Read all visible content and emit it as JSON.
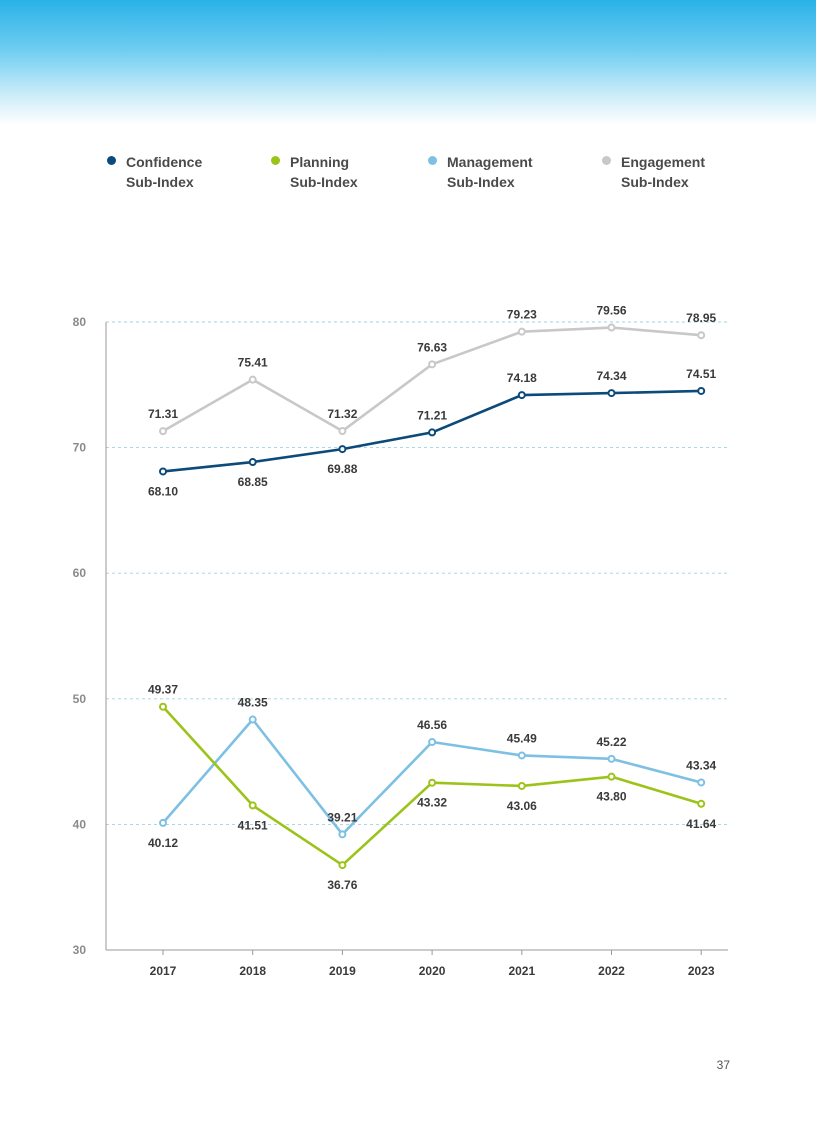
{
  "colors": {
    "confidence": "#0b4a7a",
    "planning": "#9cc31a",
    "management": "#7ec0e3",
    "engagement": "#c8c8c8",
    "grid": "#9cd3e6",
    "axis": "#999999",
    "tick_text": "#8a8a8a",
    "label_text": "#3a3a3a"
  },
  "legend": [
    {
      "key": "confidence",
      "label": "Confidence\nSub-Index"
    },
    {
      "key": "planning",
      "label": "Planning\nSub-Index"
    },
    {
      "key": "management",
      "label": "Management\nSub-Index"
    },
    {
      "key": "engagement",
      "label": "Engagement\nSub-Index"
    }
  ],
  "chart_data": {
    "type": "line",
    "x": [
      "2017",
      "2018",
      "2019",
      "2020",
      "2021",
      "2022",
      "2023"
    ],
    "ylim": [
      30,
      80
    ],
    "yticks": [
      30,
      40,
      50,
      60,
      70,
      80
    ],
    "grid": true,
    "legend_position": "top",
    "series": [
      {
        "key": "engagement",
        "name": "Engagement Sub-Index",
        "values": [
          71.31,
          75.41,
          71.32,
          76.63,
          79.23,
          79.56,
          78.95
        ],
        "labels": [
          "71.31",
          "75.41",
          "71.32",
          "76.63",
          "79.23",
          "79.56",
          "78.95"
        ],
        "label_pos": [
          "above",
          "above",
          "above",
          "above",
          "above",
          "above",
          "above"
        ]
      },
      {
        "key": "confidence",
        "name": "Confidence Sub-Index",
        "values": [
          68.1,
          68.85,
          69.88,
          71.21,
          74.18,
          74.34,
          74.51
        ],
        "labels": [
          "68.10",
          "68.85",
          "69.88",
          "71.21",
          "74.18",
          "74.34",
          "74.51"
        ],
        "label_pos": [
          "below",
          "below",
          "below",
          "above",
          "above",
          "above",
          "above"
        ]
      },
      {
        "key": "management",
        "name": "Management Sub-Index",
        "values": [
          40.12,
          48.35,
          39.21,
          46.56,
          45.49,
          45.22,
          43.34
        ],
        "labels": [
          "40.12",
          "48.35",
          "39.21",
          "46.56",
          "45.49",
          "45.22",
          "43.34"
        ],
        "label_pos": [
          "below",
          "above",
          "above",
          "above",
          "above",
          "above",
          "above"
        ]
      },
      {
        "key": "planning",
        "name": "Planning Sub-Index",
        "values": [
          49.37,
          41.51,
          36.76,
          43.32,
          43.06,
          43.8,
          41.64
        ],
        "labels": [
          "49.37",
          "41.51",
          "36.76",
          "43.32",
          "43.06",
          "43.80",
          "41.64"
        ],
        "label_pos": [
          "above",
          "below",
          "below",
          "below",
          "below",
          "below",
          "below"
        ]
      }
    ]
  },
  "page_number": "37"
}
